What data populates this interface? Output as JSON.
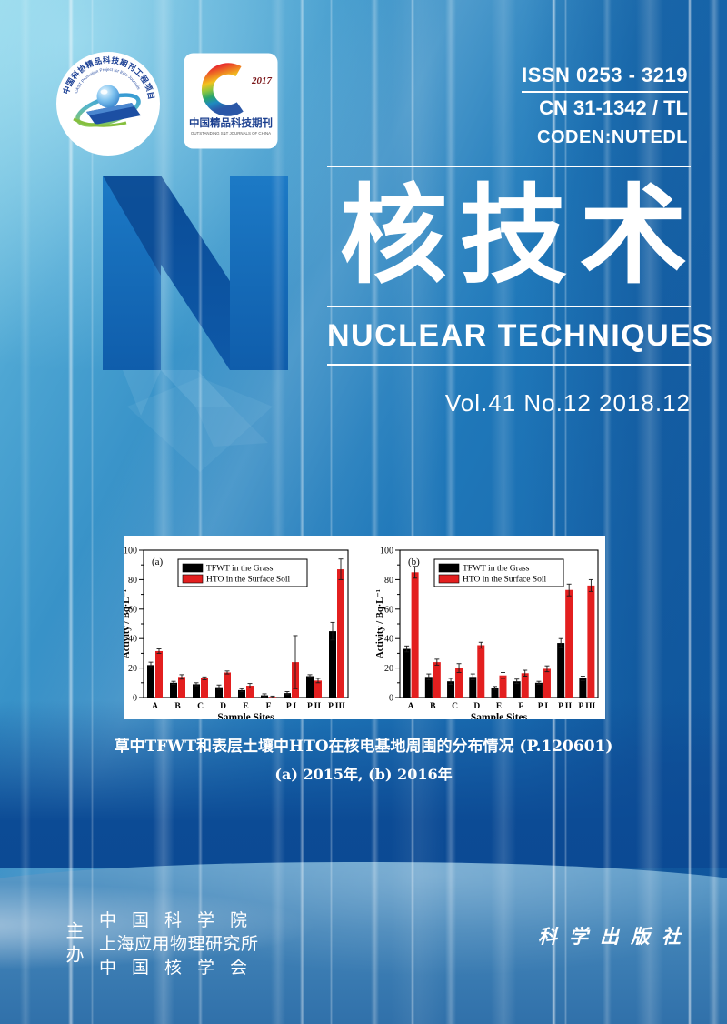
{
  "masthead": {
    "issn": "ISSN 0253 - 3219",
    "cn": "CN 31-1342 / TL",
    "coden": "CODEN:NUTEDL"
  },
  "logos": {
    "cast_ring_text": "中国科协精品科技期刊工程项目",
    "cast_ring_subtext": "CAST Promotion Project for Elite Journals",
    "award_year": "2017",
    "award_title": "中国精品科技期刊",
    "award_subtitle": "OUTSTANDING S&T JOURNALS OF CHINA"
  },
  "title": {
    "letter": "N",
    "cn": "核技术",
    "en": "NUCLEAR TECHNIQUES",
    "issue_line": "Vol.41 No.12  2018.12"
  },
  "figure_caption": {
    "line1": "草中TFWT和表层土壤中HTO在核电基地周围的分布情况 (P.120601)",
    "line2": "(a) 2015年, (b) 2016年"
  },
  "footer": {
    "organizer_label": "主办",
    "sponsors": [
      "中国科学院",
      "上海应用物理研究所",
      "中国核学会"
    ],
    "publisher": "科学出版社"
  },
  "colors": {
    "cover_blue": "#1e74b5",
    "deep_navy": "#0b4a94",
    "n_letter_blue": "#1269b8",
    "bar_black": "#000000",
    "bar_red": "#e31f1f",
    "white": "#ffffff"
  },
  "chart_data": [
    {
      "type": "bar",
      "panel_label": "(a)",
      "year": "2015",
      "categories": [
        "A",
        "B",
        "C",
        "D",
        "E",
        "F",
        "P I",
        "P II",
        "P III"
      ],
      "series": [
        {
          "name": "TFWT in the Grass",
          "color": "#000000",
          "values": [
            22,
            10,
            9,
            7,
            5,
            1.5,
            3,
            14.5,
            45
          ],
          "errors": [
            2,
            1,
            1,
            1.5,
            1,
            1,
            1,
            1,
            6
          ]
        },
        {
          "name": "HTO in the Surface Soil",
          "color": "#e31f1f",
          "values": [
            31.5,
            14,
            13,
            17,
            8,
            0.5,
            24,
            11.5,
            87
          ],
          "errors": [
            1.5,
            1.5,
            1,
            1,
            1.5,
            0.5,
            18,
            1.5,
            7
          ]
        }
      ],
      "xlabel": "Sample Sites",
      "ylabel": "Activity / Bq·L⁻¹",
      "ylim": [
        0,
        100
      ],
      "yticks": [
        0,
        20,
        40,
        60,
        80,
        100
      ],
      "ytick_step": 20,
      "minor_tick_step": 10,
      "grid": false,
      "legend_position": "top-center"
    },
    {
      "type": "bar",
      "panel_label": "(b)",
      "year": "2016",
      "categories": [
        "A",
        "B",
        "C",
        "D",
        "E",
        "F",
        "P I",
        "P II",
        "P III"
      ],
      "series": [
        {
          "name": "TFWT in the Grass",
          "color": "#000000",
          "values": [
            33,
            14,
            11,
            14,
            6.5,
            11,
            10,
            37,
            13
          ],
          "errors": [
            2,
            2,
            2,
            2,
            1,
            1.5,
            1,
            3,
            1.5
          ]
        },
        {
          "name": "HTO in the Surface Soil",
          "color": "#e31f1f",
          "values": [
            85,
            24,
            20,
            35.5,
            15,
            16.5,
            19.5,
            73,
            76
          ],
          "errors": [
            4,
            2,
            3,
            2,
            2,
            2,
            2,
            4,
            4
          ]
        }
      ],
      "xlabel": "Sample Sites",
      "ylabel": "Activity / Bq·L⁻¹",
      "ylim": [
        0,
        100
      ],
      "yticks": [
        0,
        20,
        40,
        60,
        80,
        100
      ],
      "ytick_step": 20,
      "minor_tick_step": 10,
      "grid": false,
      "legend_position": "top-center"
    }
  ]
}
